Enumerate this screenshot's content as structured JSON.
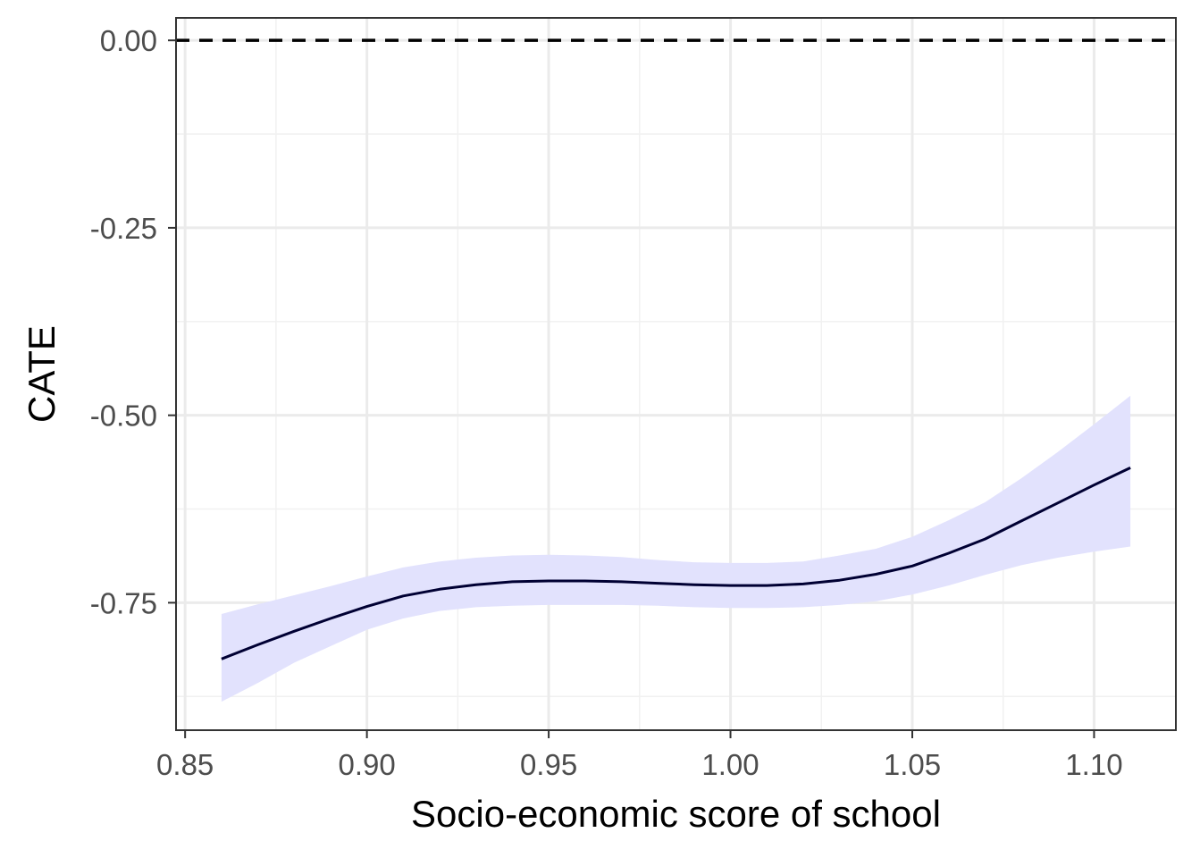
{
  "chart_data": {
    "type": "line",
    "title": "",
    "xlabel": "Socio-economic score of school",
    "ylabel": "CATE",
    "xlim": [
      0.8475,
      1.1225
    ],
    "ylim": [
      -0.92,
      0.03
    ],
    "x_ticks": [
      0.85,
      0.9,
      0.95,
      1.0,
      1.05,
      1.1
    ],
    "x_tick_labels": [
      "0.85",
      "0.90",
      "0.95",
      "1.00",
      "1.05",
      "1.10"
    ],
    "y_ticks": [
      0.0,
      -0.25,
      -0.5,
      -0.75
    ],
    "y_tick_labels": [
      "0.00",
      "-0.25",
      "-0.50",
      "-0.75"
    ],
    "grid": true,
    "reference_line": {
      "y": 0.0,
      "style": "dashed",
      "color": "#000000"
    },
    "series": [
      {
        "line_color": "#000033",
        "ribbon_color": "#e2e2fd",
        "x": [
          0.86,
          0.87,
          0.88,
          0.89,
          0.9,
          0.91,
          0.92,
          0.93,
          0.94,
          0.95,
          0.96,
          0.97,
          0.98,
          0.99,
          1.0,
          1.01,
          1.02,
          1.03,
          1.04,
          1.05,
          1.06,
          1.07,
          1.08,
          1.09,
          1.1,
          1.11
        ],
        "y": [
          -0.825,
          -0.806,
          -0.788,
          -0.771,
          -0.755,
          -0.741,
          -0.732,
          -0.726,
          -0.722,
          -0.721,
          -0.721,
          -0.722,
          -0.724,
          -0.726,
          -0.727,
          -0.727,
          -0.725,
          -0.72,
          -0.712,
          -0.701,
          -0.684,
          -0.665,
          -0.641,
          -0.617,
          -0.593,
          -0.57
        ],
        "lower": [
          -0.882,
          -0.857,
          -0.83,
          -0.808,
          -0.786,
          -0.771,
          -0.761,
          -0.756,
          -0.754,
          -0.753,
          -0.753,
          -0.753,
          -0.754,
          -0.756,
          -0.757,
          -0.757,
          -0.756,
          -0.753,
          -0.748,
          -0.739,
          -0.727,
          -0.713,
          -0.7,
          -0.69,
          -0.682,
          -0.675
        ],
        "upper": [
          -0.765,
          -0.752,
          -0.74,
          -0.728,
          -0.715,
          -0.703,
          -0.695,
          -0.69,
          -0.687,
          -0.686,
          -0.687,
          -0.689,
          -0.693,
          -0.696,
          -0.697,
          -0.697,
          -0.695,
          -0.687,
          -0.678,
          -0.662,
          -0.64,
          -0.616,
          -0.584,
          -0.549,
          -0.512,
          -0.474
        ]
      }
    ]
  }
}
